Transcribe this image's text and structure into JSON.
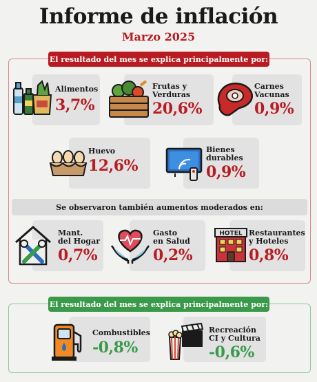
{
  "header": {
    "title": "Informe de inflación",
    "subtitle": "Marzo 2025"
  },
  "sections": {
    "main_heading": "El resultado del mes se explica principalmente por:",
    "moderate_heading": "Se observaron también aumentos moderados en:",
    "negative_heading": "El resultado del mes se explica principalmente por:"
  },
  "items": {
    "alimentos": {
      "label": "Alimentos",
      "value": "3,7%",
      "icon": "groceries-icon"
    },
    "frutas": {
      "label": "Frutas y\nVerduras",
      "value": "20,6%",
      "icon": "vegetable-crate-icon"
    },
    "carnes": {
      "label": "Carnes\nVacunas",
      "value": "0,9%",
      "icon": "steak-icon"
    },
    "huevo": {
      "label": "Huevo",
      "value": "12,6%",
      "icon": "egg-carton-icon"
    },
    "bienes": {
      "label": "Bienes\ndurables",
      "value": "0,9%",
      "icon": "tv-icon"
    },
    "hogar": {
      "label": "Mant.\ndel Hogar",
      "value": "0,7%",
      "icon": "house-tools-icon"
    },
    "salud": {
      "label": "Gasto\nen Salud",
      "value": "0,2%",
      "icon": "health-heart-icon"
    },
    "restaurantes": {
      "label": "Restaurantes\ny Hoteles",
      "value": "0,8%",
      "icon": "hotel-icon",
      "sign": "HOTEL"
    },
    "combustibles": {
      "label": "Combustibles",
      "value": "-0,8%",
      "icon": "fuel-pump-icon"
    },
    "recreacion": {
      "label": "Recreación\nCI y Cultura",
      "value": "-0,6%",
      "icon": "cinema-icon"
    }
  },
  "colors": {
    "red": "#b81c22",
    "green": "#3a9a4a",
    "card": "#e2e2e2",
    "background": "#f2f2f0"
  }
}
